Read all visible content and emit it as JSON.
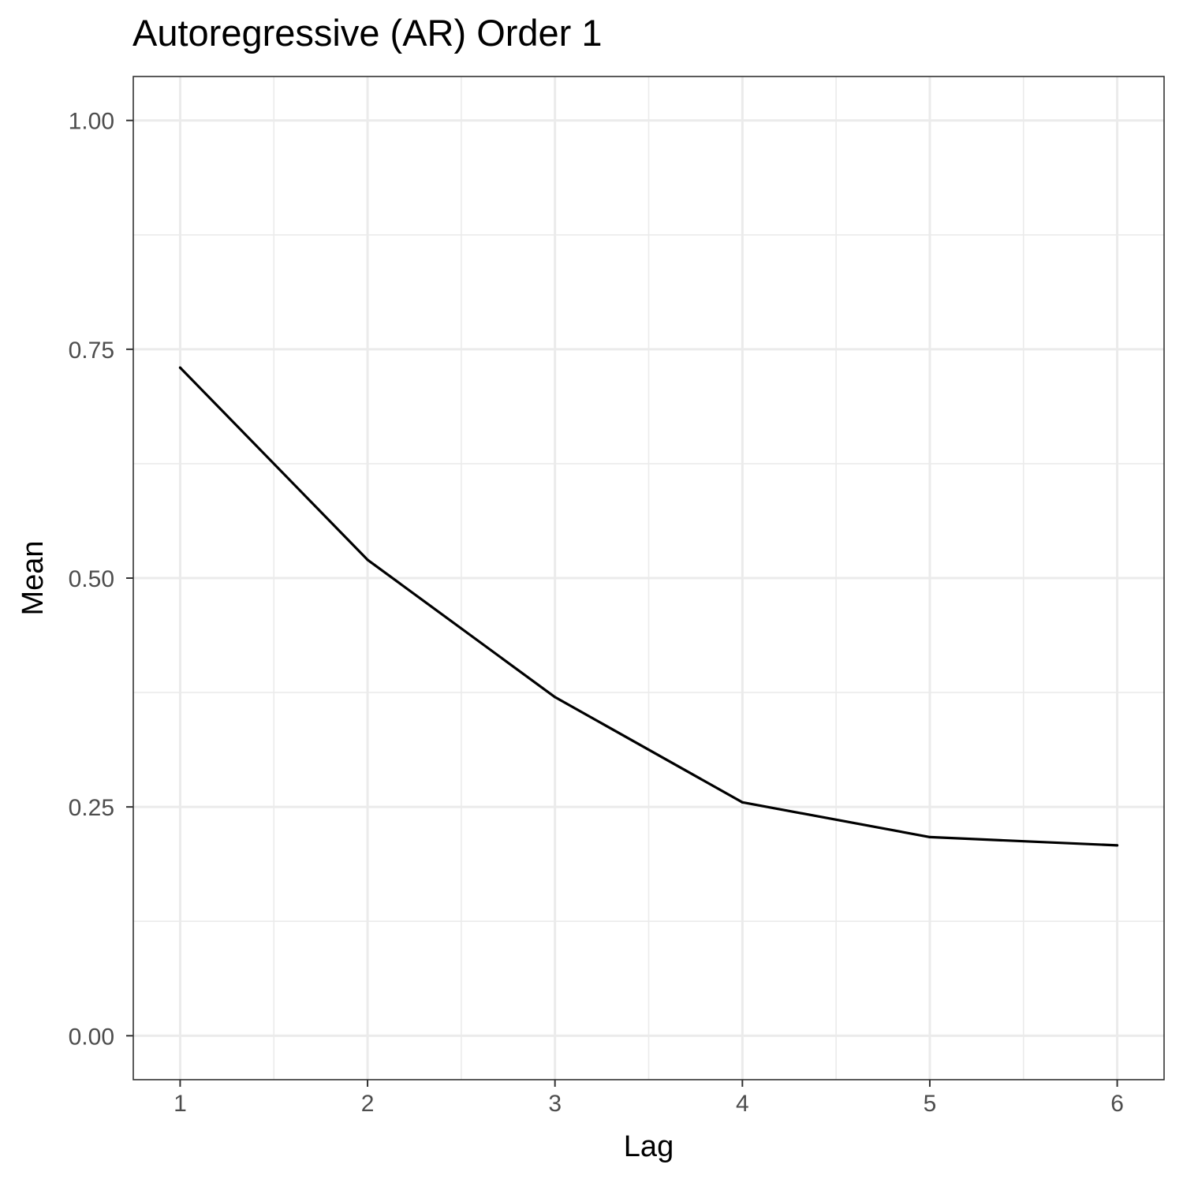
{
  "chart_data": {
    "type": "line",
    "title": "Autoregressive (AR) Order 1",
    "xlabel": "Lag",
    "ylabel": "Mean",
    "x": [
      1,
      2,
      3,
      4,
      5,
      6
    ],
    "y": [
      0.73,
      0.52,
      0.37,
      0.255,
      0.217,
      0.208
    ],
    "xlim": [
      0.75,
      6.25
    ],
    "ylim": [
      -0.048,
      1.048
    ],
    "x_ticks": [
      1,
      2,
      3,
      4,
      5,
      6
    ],
    "x_tick_labels": [
      "1",
      "2",
      "3",
      "4",
      "5",
      "6"
    ],
    "y_ticks": [
      0,
      0.25,
      0.5,
      0.75,
      1.0
    ],
    "y_tick_labels": [
      "0.00",
      "0.25",
      "0.50",
      "0.75",
      "1.00"
    ],
    "grid": true,
    "theme": "bw",
    "colors": {
      "line": "#000000",
      "grid": "#ebebeb",
      "panel_border": "#333333",
      "tick_text": "#4d4d4d"
    }
  }
}
